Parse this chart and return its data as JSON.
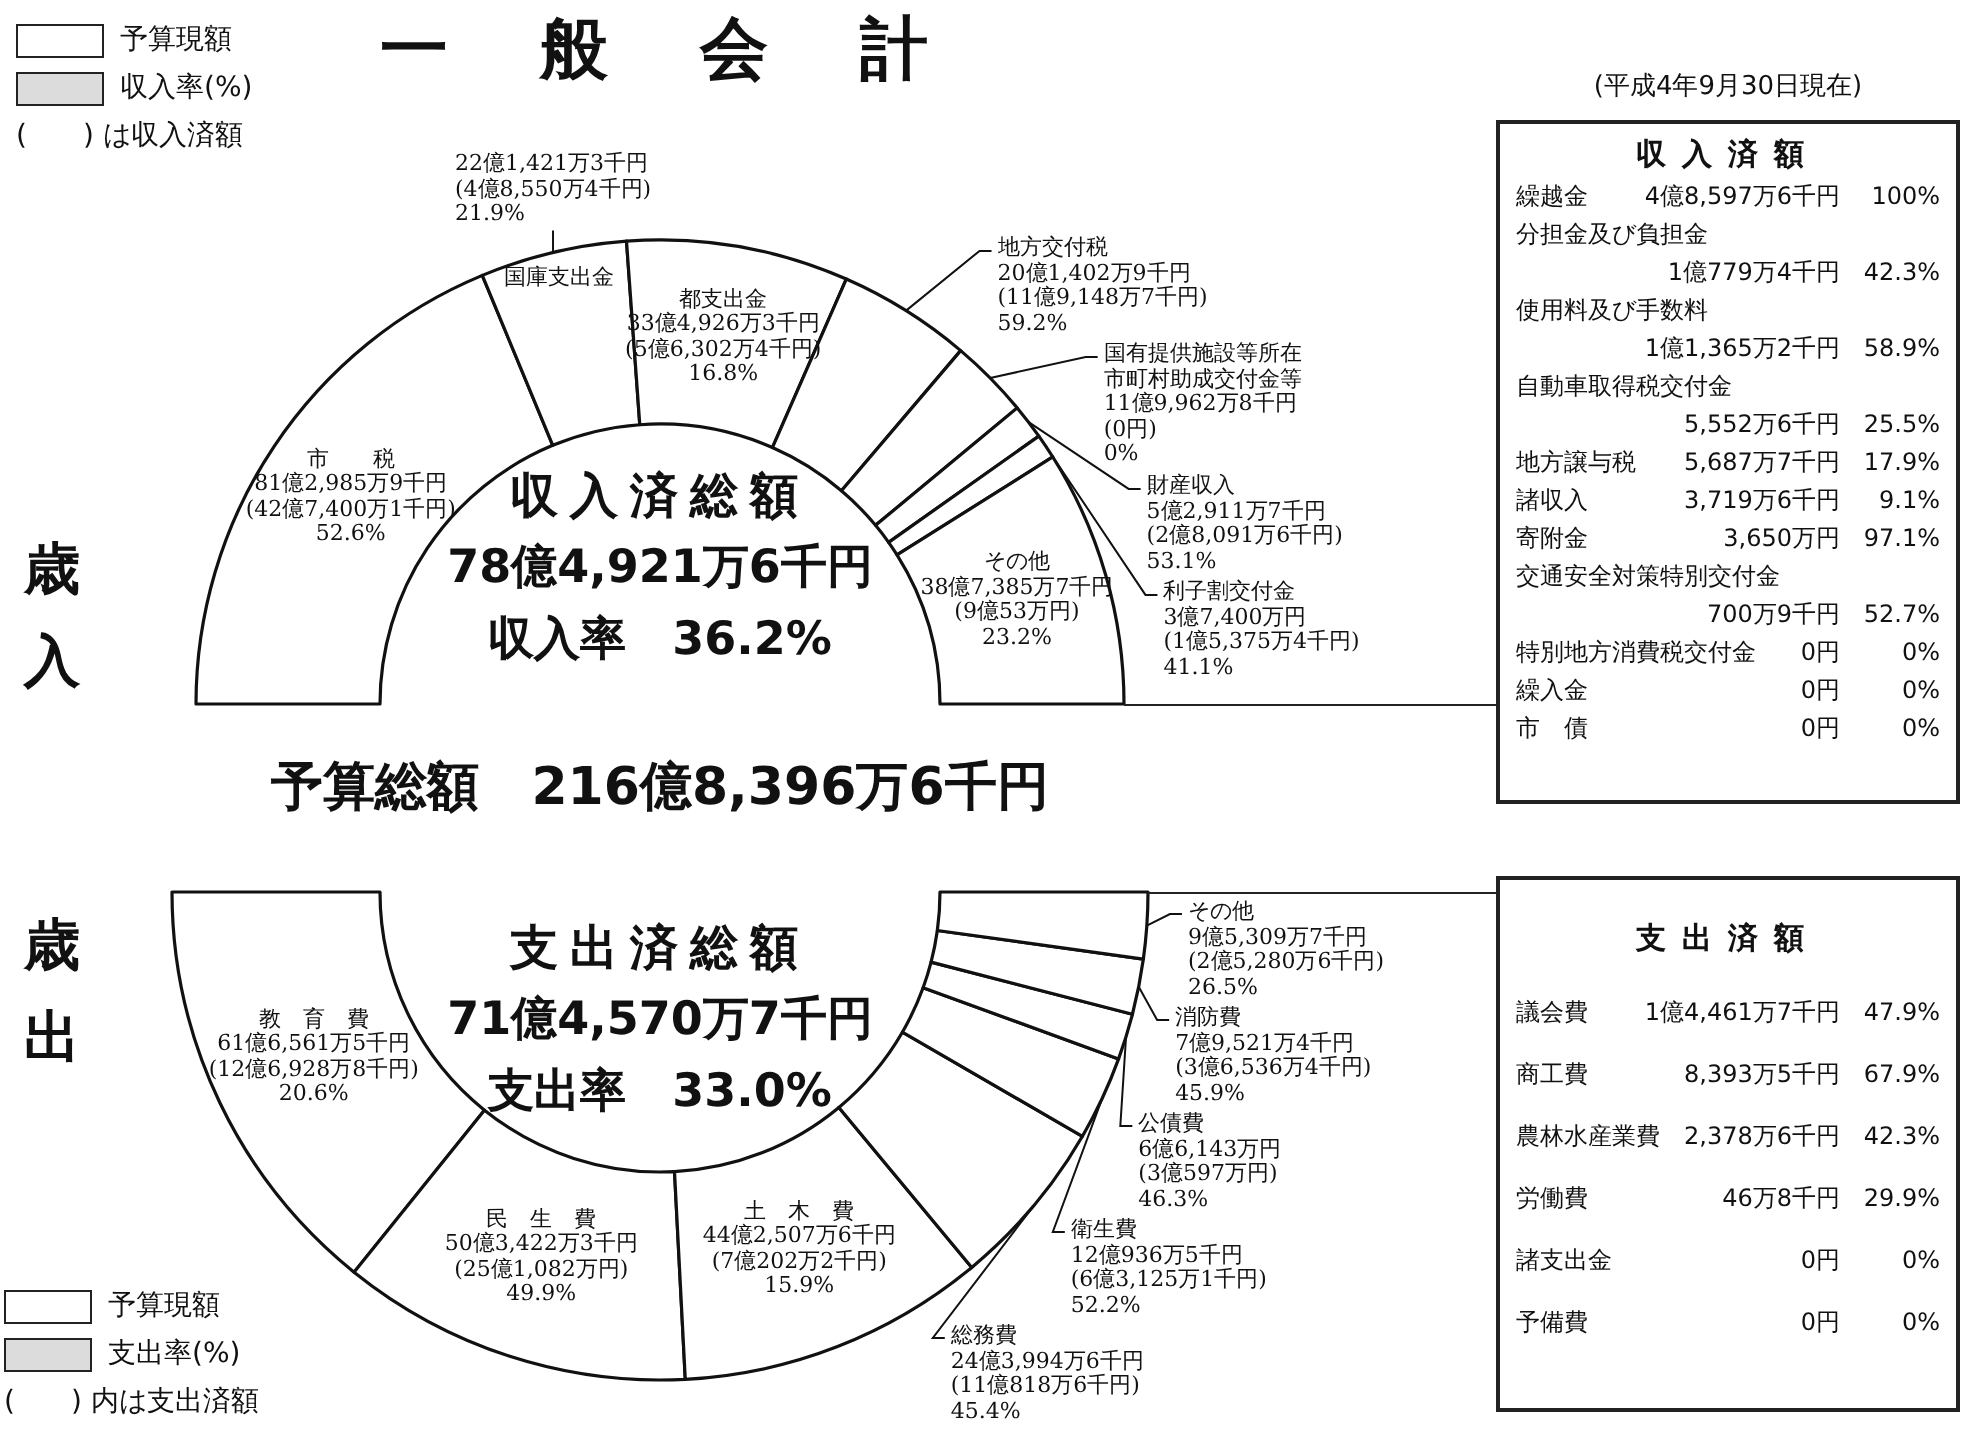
{
  "chart_data": [
    {
      "type": "donut",
      "title": "一　般　会　計",
      "legend": "top left",
      "categories": [
        "市　　税",
        "国庫支出金",
        "都支出金",
        "地方交付税",
        "国有提供施設等所在市町村助成交付金等",
        "財産収入",
        "利子割交付金",
        "その他"
      ],
      "series": [
        {
          "name": "予算現額",
          "color": "#ffffff",
          "values": [
            37.49,
            10.21,
            15.45,
            9.29,
            5.53,
            2.44,
            1.72,
            17.87
          ]
        }
      ],
      "annotations": [
        "収入率(%)",
        "(　　) は収入済額",
        "歳入",
        "収入済総額",
        "78億4,921万6千円",
        "収入率　36.2%",
        "予算総額　216億8,396万6千円",
        "81億2,985万9千円\n(42億7,400万1千円)\n52.6%",
        "22億1,421万3千円\n(4億8,550万4千円)\n21.9%",
        "33億4,926万3千円\n(5億6,302万4千円)\n16.8%",
        "20億1,402万9千円\n(11億9,148万7千円)\n59.2%",
        "11億9,962万8千円\n(0円)\n0%",
        "5億2,911万7千円\n(2億8,091万6千円)\n53.1%",
        "3億7,400万円\n(1億5,375万4千円)\n41.1%",
        "38億7,385万7千円\n(9億53万円)\n23.2%"
      ]
    },
    {
      "type": "other",
      "title": "収入済額",
      "subtitle": "(平成4年9月30日現在)",
      "annotations": [
        "繰越金\t4億8,597万6千円\t100%",
        "分担金及び負担金\t1億779万4千円\t42.3%",
        "使用料及び手数料\t1億1,365万2千円\t58.9%",
        "自動車取得税交付金\t5,552万6千円\t25.5%",
        "地方譲与税\t5,687万7千円\t17.9%",
        "諸収入\t3,719万6千円\t9.1%",
        "寄附金\t3,650万円\t97.1%",
        "交通安全対策特別交付金\t700万9千円\t52.7%",
        "特別地方消費税交付金\t0円\t0%",
        "繰入金\t0円\t0%",
        "市　債\t0円\t0%"
      ]
    },
    {
      "type": "donut",
      "legend": "bottom left",
      "categories": [
        "教　育　費",
        "民　生　費",
        "土　木　費",
        "総務費",
        "衛生費",
        "公債費",
        "消防費",
        "その他"
      ],
      "series": [
        {
          "name": "予算現額",
          "color": "#ffffff",
          "values": [
            28.43,
            23.22,
            20.41,
            11.25,
            5.58,
            3.05,
            3.67,
            4.39
          ]
        }
      ],
      "annotations": [
        "支出率(%)",
        "(　　) 内は支出済額",
        "歳出",
        "支出済総額",
        "71億4,570万7千円",
        "支出率　33.0%",
        "61億6,561万5千円\n(12億6,928万8千円)\n20.6%",
        "50億3,422万3千円\n(25億1,082万円)\n49.9%",
        "44億2,507万6千円\n(7億202万2千円)\n15.9%",
        "24億3,994万6千円\n(11億818万6千円)\n45.4%",
        "12億936万5千円\n(6億3,125万1千円)\n52.2%",
        "6億6,143万円\n(3億597万円)\n46.3%",
        "7億9,521万4千円\n(3億6,536万4千円)\n45.9%",
        "9億5,309万7千円\n(2億5,280万6千円)\n26.5%"
      ]
    },
    {
      "type": "other",
      "title": "支出済額",
      "annotations": [
        "議会費\t1億4,461万7千円\t47.9%",
        "商工費\t8,393万5千円\t67.9%",
        "農林水産業費\t2,378万6千円\t42.3%",
        "労働費\t46万8千円\t29.9%",
        "諸支出金\t0円\t0%",
        "予備費\t0円\t0%"
      ]
    }
  ]
}
